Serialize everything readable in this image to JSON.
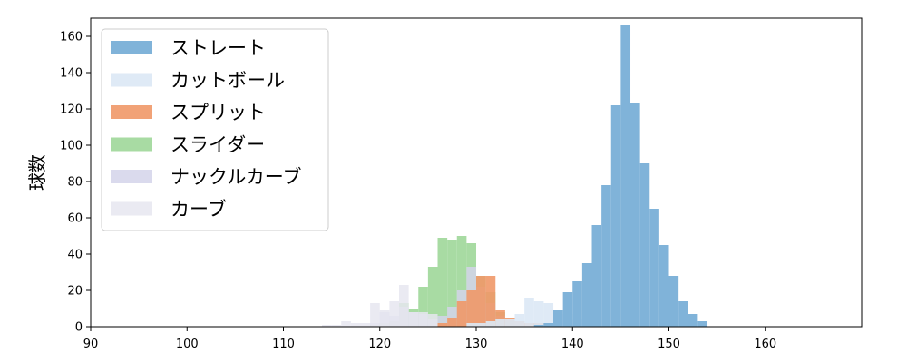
{
  "chart_data": {
    "type": "bar",
    "chart_style": "overlapping histogram",
    "title": "",
    "xlabel": "",
    "ylabel": "球数",
    "xlim": [
      90,
      170
    ],
    "ylim": [
      0,
      170
    ],
    "xticks": [
      90,
      100,
      110,
      120,
      130,
      140,
      150,
      160
    ],
    "yticks": [
      0,
      20,
      40,
      60,
      80,
      100,
      120,
      140,
      160
    ],
    "grid": false,
    "legend_position": "top-left",
    "bin_width": 1,
    "series": [
      {
        "name": "スライダー",
        "color": "#a8dba3",
        "opacity": 1,
        "bins": [
          [
            119,
            1
          ],
          [
            120,
            2
          ],
          [
            121,
            3
          ],
          [
            122,
            13
          ],
          [
            123,
            10
          ],
          [
            124,
            22
          ],
          [
            125,
            33
          ],
          [
            126,
            49
          ],
          [
            127,
            48
          ],
          [
            128,
            50
          ],
          [
            129,
            46
          ],
          [
            130,
            28
          ],
          [
            131,
            19
          ],
          [
            132,
            8
          ],
          [
            133,
            3
          ],
          [
            134,
            1
          ]
        ]
      },
      {
        "name": "ナックルカーブ",
        "color": "#d4d4ea",
        "opacity": 0.85,
        "bins": [
          [
            119,
            2
          ],
          [
            120,
            8
          ],
          [
            121,
            6
          ],
          [
            122,
            11
          ],
          [
            123,
            8
          ],
          [
            124,
            7
          ],
          [
            125,
            4
          ],
          [
            126,
            6
          ],
          [
            127,
            11
          ],
          [
            128,
            20
          ],
          [
            129,
            33
          ],
          [
            130,
            22
          ],
          [
            131,
            13
          ],
          [
            132,
            6
          ]
        ]
      },
      {
        "name": "スプリット",
        "color": "#f09868",
        "opacity": 0.9,
        "bins": [
          [
            126,
            2
          ],
          [
            127,
            5
          ],
          [
            128,
            14
          ],
          [
            129,
            20
          ],
          [
            130,
            28
          ],
          [
            131,
            28
          ],
          [
            132,
            9
          ],
          [
            133,
            5
          ],
          [
            134,
            3
          ],
          [
            135,
            2
          ],
          [
            136,
            2
          ],
          [
            137,
            2
          ]
        ]
      },
      {
        "name": "カーブ",
        "color": "#e6e6f0",
        "opacity": 0.85,
        "bins": [
          [
            114,
            1
          ],
          [
            115,
            1
          ],
          [
            116,
            3
          ],
          [
            117,
            2
          ],
          [
            118,
            2
          ],
          [
            119,
            13
          ],
          [
            120,
            9
          ],
          [
            121,
            14
          ],
          [
            122,
            23
          ],
          [
            123,
            8
          ],
          [
            124,
            8
          ],
          [
            125,
            7
          ]
        ]
      },
      {
        "name": "カットボール",
        "color": "#dce8f5",
        "opacity": 0.9,
        "bins": [
          [
            129,
            2
          ],
          [
            130,
            2
          ],
          [
            131,
            3
          ],
          [
            132,
            4
          ],
          [
            133,
            4
          ],
          [
            134,
            7
          ],
          [
            135,
            16
          ],
          [
            136,
            14
          ],
          [
            137,
            13
          ],
          [
            138,
            9
          ],
          [
            139,
            7
          ],
          [
            140,
            4
          ],
          [
            141,
            2
          ],
          [
            142,
            1
          ]
        ]
      },
      {
        "name": "ストレート",
        "color": "#80b3d9",
        "opacity": 1,
        "bins": [
          [
            136,
            1
          ],
          [
            137,
            2
          ],
          [
            138,
            9
          ],
          [
            139,
            19
          ],
          [
            140,
            25
          ],
          [
            141,
            35
          ],
          [
            142,
            56
          ],
          [
            143,
            78
          ],
          [
            144,
            122
          ],
          [
            145,
            166
          ],
          [
            146,
            123
          ],
          [
            147,
            90
          ],
          [
            148,
            65
          ],
          [
            149,
            45
          ],
          [
            150,
            28
          ],
          [
            151,
            14
          ],
          [
            152,
            7
          ],
          [
            153,
            3
          ]
        ]
      }
    ],
    "legend_order": [
      "ストレート",
      "カットボール",
      "スプリット",
      "スライダー",
      "ナックルカーブ",
      "カーブ"
    ]
  }
}
